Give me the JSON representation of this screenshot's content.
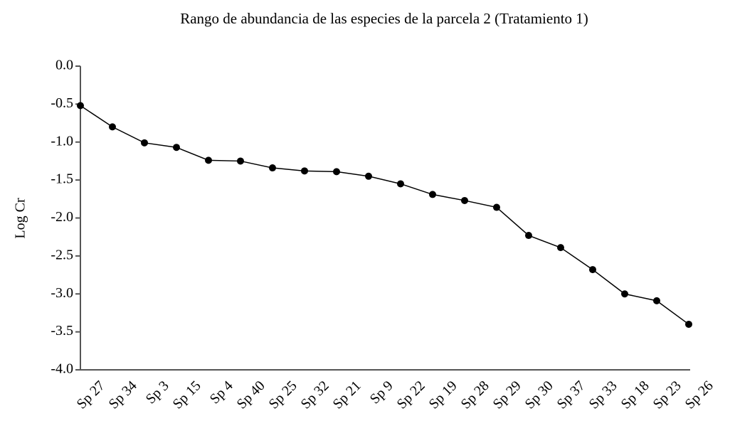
{
  "chart_data": {
    "type": "line",
    "title": "Rango de abundancia de las especies de la parcela 2 (Tratamiento 1)",
    "y_label": "Log Cr",
    "categories": [
      "Sp 27",
      "Sp 34",
      "Sp 3",
      "Sp 15",
      "Sp 4",
      "Sp 40",
      "Sp 25",
      "Sp 32",
      "Sp 21",
      "Sp 9",
      "Sp 22",
      "Sp 19",
      "Sp 28",
      "Sp 29",
      "Sp 30",
      "Sp 37",
      "Sp 33",
      "Sp 18",
      "Sp 23",
      "Sp 26"
    ],
    "values": [
      -0.52,
      -0.8,
      -1.01,
      -1.07,
      -1.24,
      -1.25,
      -1.34,
      -1.38,
      -1.39,
      -1.45,
      -1.55,
      -1.69,
      -1.77,
      -1.86,
      -2.23,
      -2.39,
      -2.68,
      -3.0,
      -3.09,
      -3.4
    ],
    "color": "#000000",
    "ylim": [
      -4,
      0
    ],
    "yticks": [
      {
        "value": 0,
        "label": "0.0"
      },
      -0.5,
      {
        "value": -1,
        "label": "-1.0"
      },
      -1.5,
      {
        "value": -2,
        "label": "-2.0"
      },
      -2.5,
      {
        "value": -3,
        "label": "-3.0"
      },
      -3.5,
      {
        "value": -4,
        "label": "-4.0"
      }
    ],
    "grid": false
  }
}
